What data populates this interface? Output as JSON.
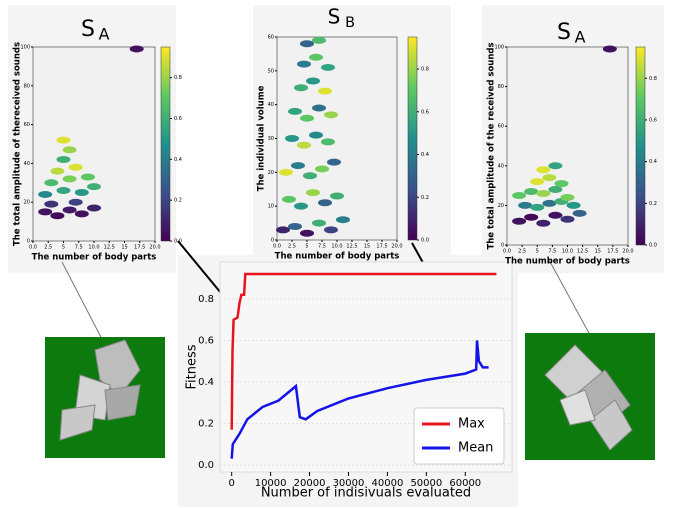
{
  "chart_data": [
    {
      "type": "line",
      "xlabel": "Number of indisivuals evaluated",
      "ylabel": "Fitness",
      "xlim": [
        -3000,
        72000
      ],
      "ylim": [
        -0.034,
        0.978
      ],
      "xticks": [
        0,
        10000,
        20000,
        30000,
        40000,
        50000,
        60000
      ],
      "yticks": [
        {
          "value": 0,
          "label": "0.0"
        },
        0.2,
        0.4,
        0.6,
        0.8
      ],
      "grid": true,
      "legend": "lower right",
      "series": [
        {
          "name": "Max",
          "color": "#e8141c",
          "x": [
            0,
            200,
            500,
            1500,
            2000,
            2500,
            3200,
            3500,
            68000
          ],
          "values": [
            0.17,
            0.55,
            0.7,
            0.71,
            0.78,
            0.82,
            0.82,
            0.92,
            0.92
          ]
        },
        {
          "name": "Mean",
          "color": "#1414e8",
          "x": [
            0,
            300,
            2000,
            4000,
            8000,
            12000,
            16500,
            17500,
            19000,
            22000,
            30000,
            40000,
            50000,
            60000,
            62800,
            63000,
            63500,
            64500,
            66000
          ],
          "values": [
            0.03,
            0.1,
            0.15,
            0.22,
            0.28,
            0.31,
            0.38,
            0.23,
            0.22,
            0.26,
            0.32,
            0.37,
            0.41,
            0.44,
            0.46,
            0.6,
            0.5,
            0.47,
            0.47
          ]
        }
      ]
    },
    {
      "type": "hexbin",
      "title": "S",
      "title_subscript": "A",
      "xlabel": "The number of body parts",
      "ylabel": "The total amplitude of thereceived sounds",
      "xlim": [
        0,
        20
      ],
      "ylim": [
        0,
        100
      ],
      "clim": [
        0,
        0.95
      ],
      "xticks": [
        {
          "value": 0,
          "label": "0.0"
        },
        2.5,
        5,
        7.5,
        {
          "value": 10,
          "label": "10.0"
        },
        12.5,
        15,
        17.5,
        {
          "value": 20,
          "label": "20.0"
        }
      ],
      "yticks": [
        0,
        20,
        40,
        60,
        80,
        100
      ],
      "cticks": [
        {
          "value": 0,
          "label": "0.0"
        },
        0.2,
        0.4,
        0.6,
        0.8
      ],
      "x": [
        2,
        4,
        6,
        8,
        10,
        3,
        7,
        2,
        5,
        8,
        10,
        3,
        6,
        9,
        4,
        7,
        5,
        6,
        5,
        17
      ],
      "y": [
        15,
        13,
        16,
        14,
        17,
        19,
        20,
        24,
        26,
        25,
        28,
        30,
        32,
        33,
        36,
        38,
        42,
        47,
        52,
        99
      ],
      "values": [
        0.05,
        0.02,
        0.08,
        0.04,
        0.1,
        0.15,
        0.2,
        0.45,
        0.55,
        0.5,
        0.6,
        0.65,
        0.75,
        0.7,
        0.85,
        0.9,
        0.6,
        0.8,
        0.9,
        0.05
      ]
    },
    {
      "type": "hexbin",
      "title": "S",
      "title_subscript": "B",
      "xlabel": "The number of body parts",
      "ylabel": "The individual volume",
      "xlim": [
        0,
        20
      ],
      "ylim": [
        0,
        60
      ],
      "clim": [
        0,
        0.95
      ],
      "xticks": [
        {
          "value": 0,
          "label": "0.0"
        },
        2.5,
        5,
        7.5,
        {
          "value": 10,
          "label": "10.0"
        },
        12.5,
        15,
        17.5,
        {
          "value": 20,
          "label": "20.0"
        }
      ],
      "yticks": [
        0,
        10,
        20,
        30,
        40,
        50,
        60
      ],
      "cticks": [
        {
          "value": 0,
          "label": "0.0"
        },
        0.2,
        0.4,
        0.6,
        0.8
      ],
      "x": [
        1,
        3,
        5,
        7,
        9,
        11,
        2,
        4,
        6,
        8,
        10,
        1.5,
        3.5,
        5.5,
        7.5,
        9.5,
        2.5,
        4.5,
        6.5,
        8.5,
        3,
        5,
        7,
        9,
        4,
        6,
        8,
        4.5,
        6.5,
        8.5,
        5,
        7
      ],
      "y": [
        3,
        4,
        2,
        5,
        3,
        6,
        12,
        10,
        14,
        11,
        13,
        20,
        22,
        19,
        21,
        23,
        30,
        28,
        31,
        29,
        38,
        36,
        39,
        37,
        45,
        47,
        44,
        52,
        54,
        51,
        58,
        59
      ],
      "values": [
        0.1,
        0.3,
        0.05,
        0.6,
        0.2,
        0.4,
        0.7,
        0.5,
        0.8,
        0.3,
        0.6,
        0.9,
        0.4,
        0.6,
        0.75,
        0.3,
        0.5,
        0.85,
        0.45,
        0.65,
        0.55,
        0.7,
        0.35,
        0.8,
        0.6,
        0.5,
        0.9,
        0.4,
        0.7,
        0.55,
        0.3,
        0.65
      ]
    },
    {
      "type": "hexbin",
      "title": "S",
      "title_subscript": "A",
      "xlabel": "The number of body parts",
      "ylabel": "The total amplitude of the received sounds",
      "xlim": [
        0,
        20
      ],
      "ylim": [
        0,
        100
      ],
      "clim": [
        0,
        0.95
      ],
      "xticks": [
        {
          "value": 0,
          "label": "0.0"
        },
        2.5,
        5,
        7.5,
        {
          "value": 10,
          "label": "10.0"
        },
        12.5,
        15,
        17.5,
        {
          "value": 20,
          "label": "20.0"
        }
      ],
      "yticks": [
        0,
        20,
        40,
        60,
        80,
        100
      ],
      "cticks": [
        {
          "value": 0,
          "label": "0.0"
        },
        0.2,
        0.4,
        0.6,
        0.8
      ],
      "x": [
        2,
        4,
        6,
        8,
        10,
        12,
        3,
        5,
        7,
        9,
        11,
        2,
        4,
        6,
        8,
        10,
        5,
        7,
        9,
        6,
        8,
        17
      ],
      "y": [
        12,
        14,
        11,
        15,
        13,
        16,
        20,
        19,
        21,
        22,
        20,
        25,
        27,
        26,
        28,
        24,
        32,
        34,
        31,
        38,
        40,
        99
      ],
      "values": [
        0.05,
        0.02,
        0.1,
        0.05,
        0.15,
        0.3,
        0.4,
        0.55,
        0.35,
        0.6,
        0.5,
        0.7,
        0.65,
        0.8,
        0.6,
        0.75,
        0.9,
        0.85,
        0.7,
        0.9,
        0.55,
        0.05
      ]
    }
  ]
}
